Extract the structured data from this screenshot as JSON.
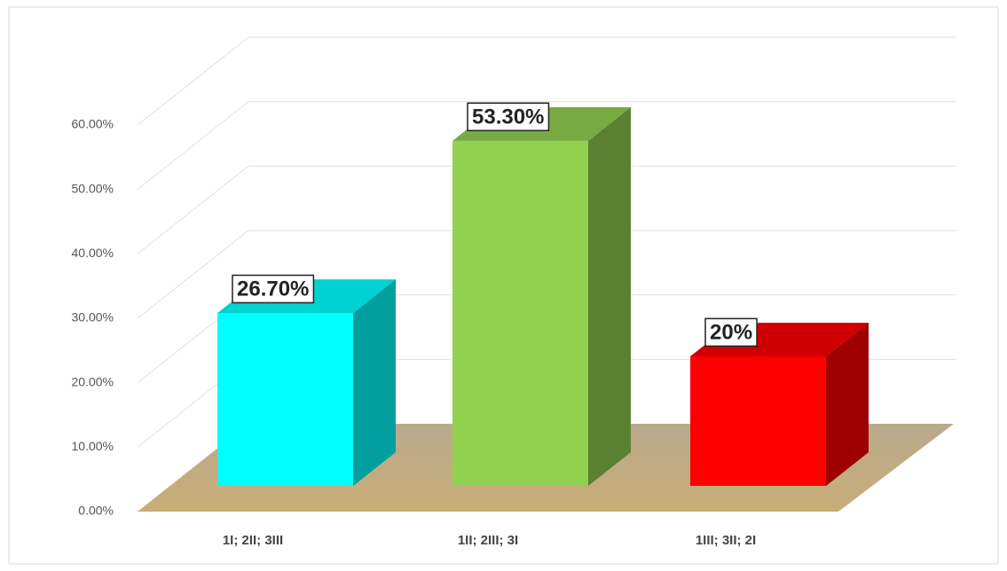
{
  "chart_data": {
    "type": "bar3d",
    "categories": [
      "1I; 2II; 3III",
      "1II; 2III; 3I",
      "1III; 3II; 2I"
    ],
    "values": [
      26.7,
      53.3,
      20
    ],
    "value_labels": [
      "26.70%",
      "53.30%",
      "20%"
    ],
    "colors": [
      "#00ffff",
      "#92d050",
      "#ff0000"
    ],
    "ylim": [
      0,
      60
    ],
    "yticks": [
      {
        "value": 0,
        "label": "0.00%"
      },
      {
        "value": 10,
        "label": "10.00%"
      },
      {
        "value": 20,
        "label": "20.00%"
      },
      {
        "value": 30,
        "label": "30.00%"
      },
      {
        "value": 40,
        "label": "40.00%"
      },
      {
        "value": 50,
        "label": "50.00%"
      },
      {
        "value": 60,
        "label": "60.00%"
      }
    ],
    "grid": true
  }
}
